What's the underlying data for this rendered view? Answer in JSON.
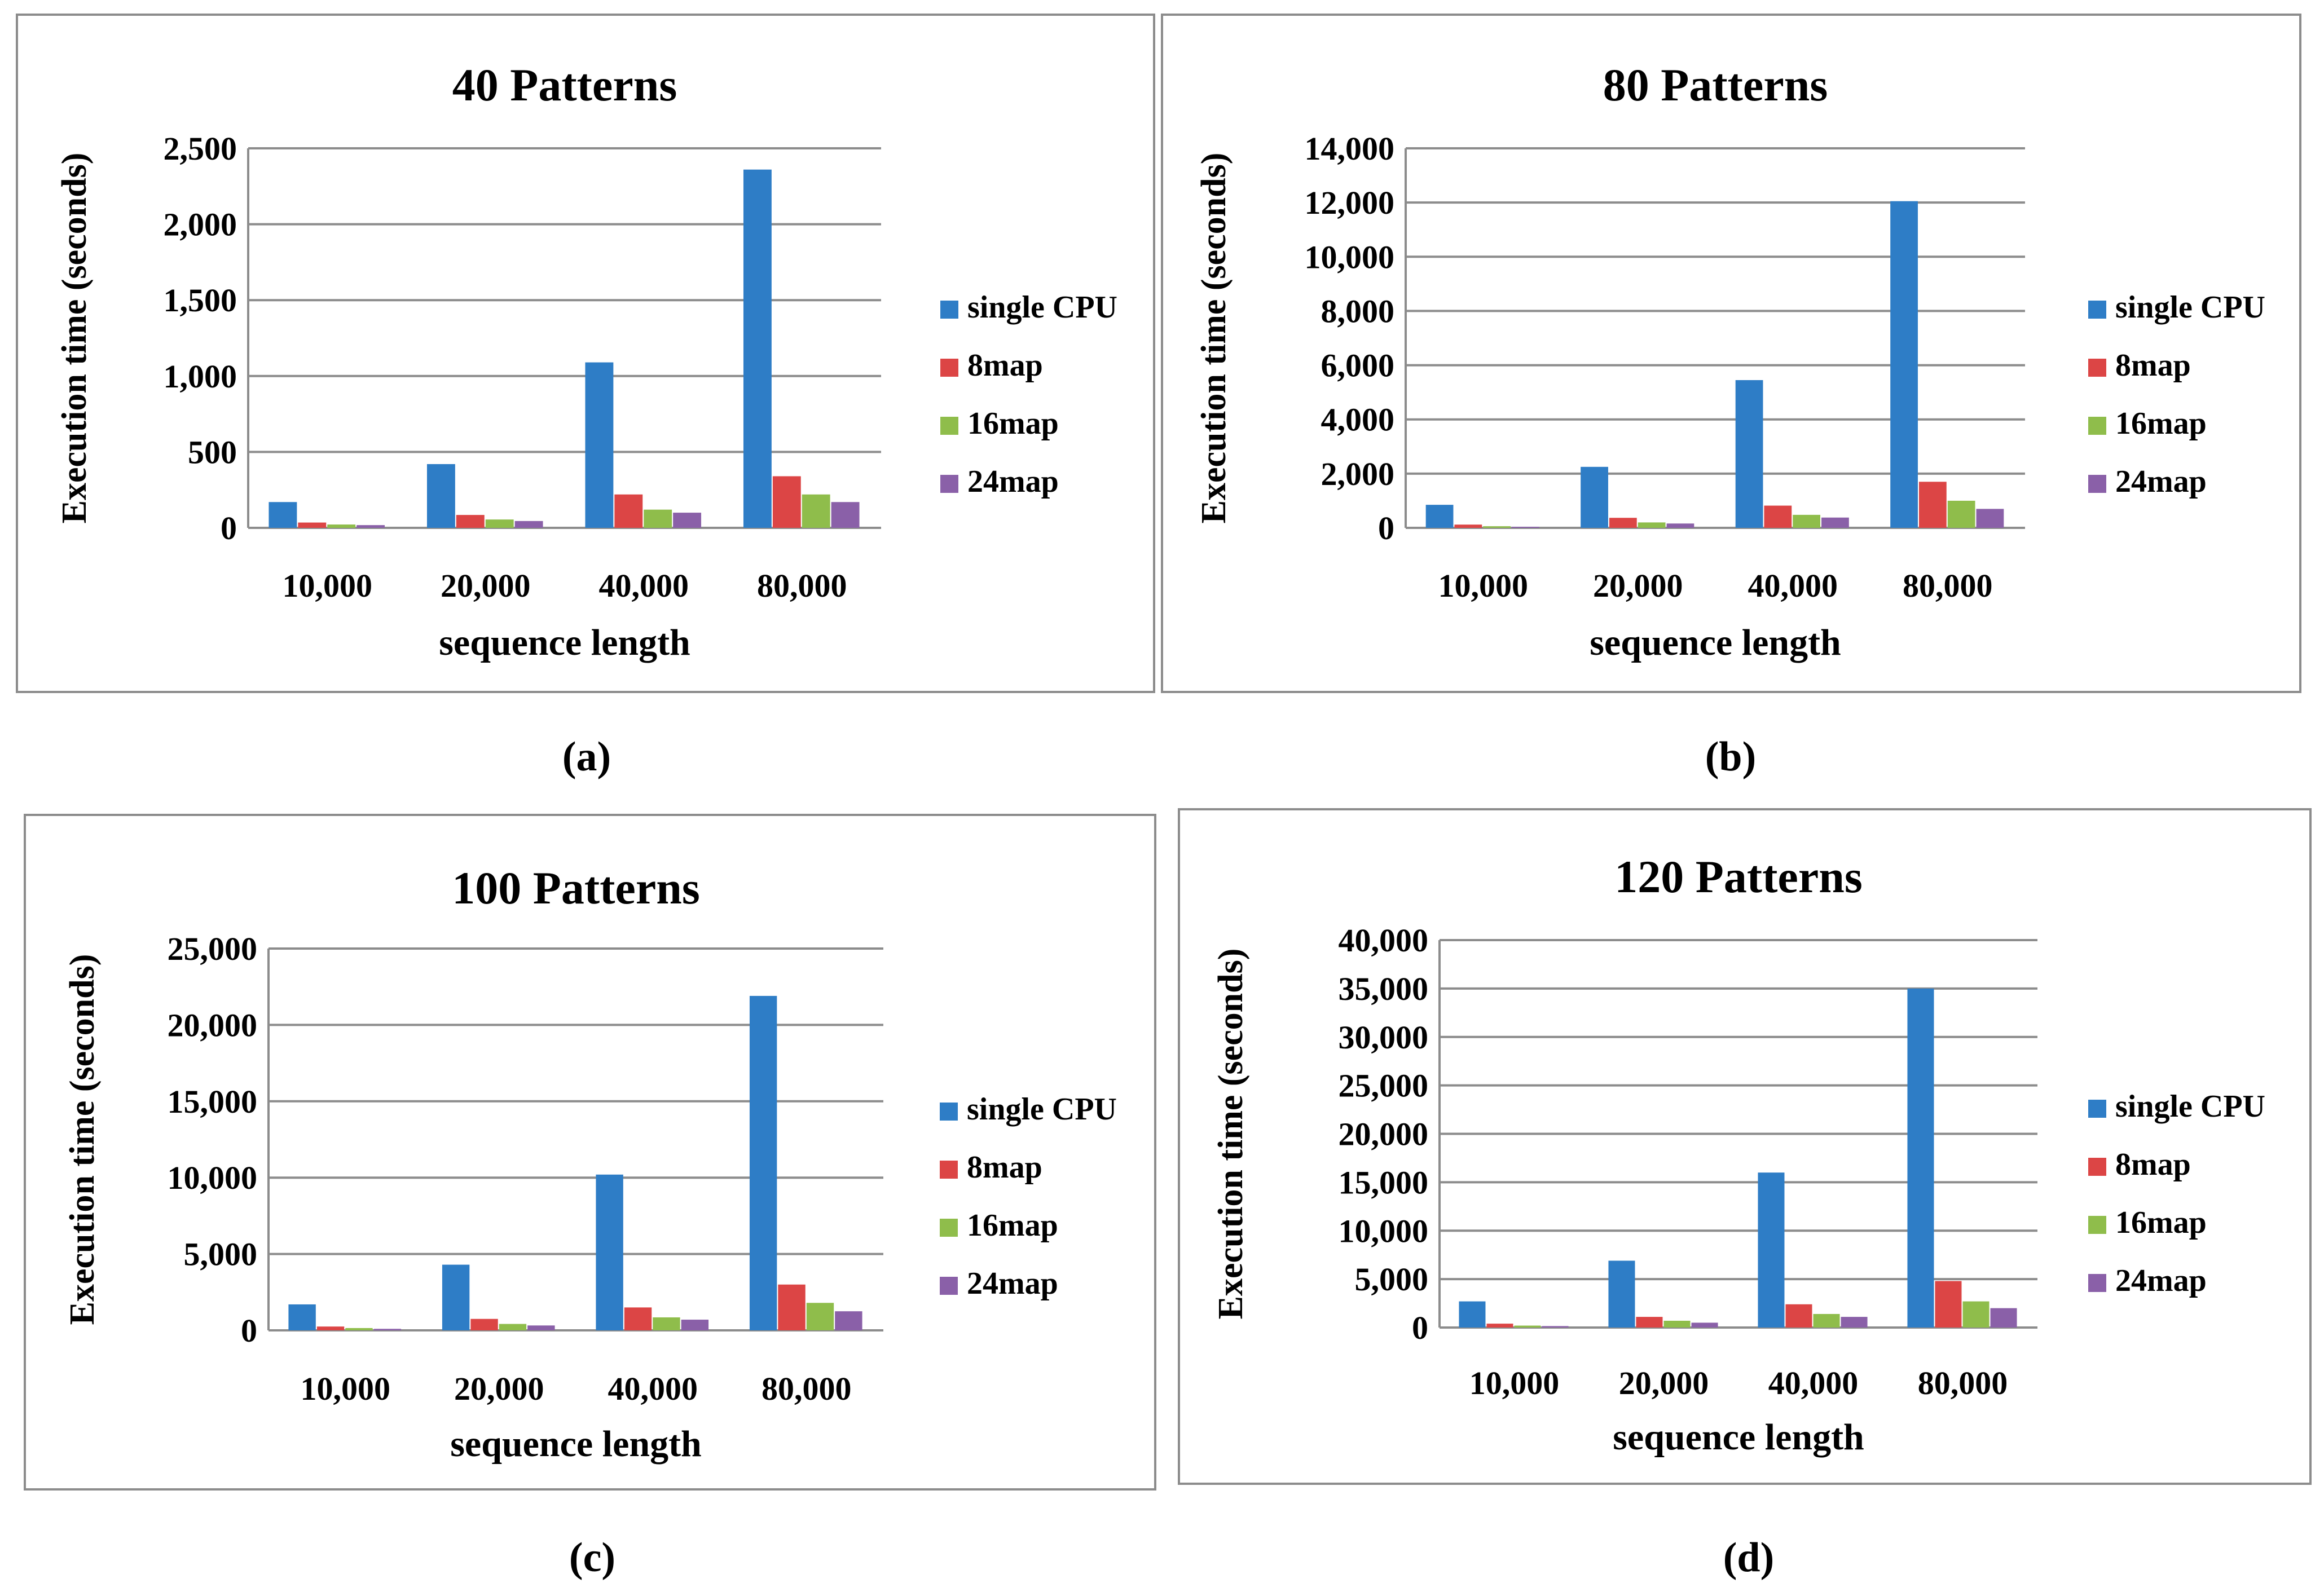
{
  "figure": {
    "captions": [
      "(a)",
      "(b)",
      "(c)",
      "(d)"
    ]
  },
  "legend": [
    "single CPU",
    "8map",
    "16map",
    "24map"
  ],
  "colors": [
    "#2e7dc6",
    "#dc4545",
    "#8fbd4b",
    "#8a60a8"
  ],
  "chart_data": [
    {
      "type": "bar",
      "title": "40 Patterns",
      "xlabel": "sequence length",
      "ylabel": "Execution time (seconds)",
      "categories": [
        "10,000",
        "20,000",
        "40,000",
        "80,000"
      ],
      "ylim": [
        0,
        2500
      ],
      "yticks": [
        0,
        500,
        1000,
        1500,
        2000,
        2500
      ],
      "ytick_labels": [
        "0",
        "500",
        "1,000",
        "1,500",
        "2,000",
        "2,500"
      ],
      "grid": true,
      "legend_position": "right",
      "series": [
        {
          "name": "single CPU",
          "values": [
            170,
            420,
            1090,
            2360
          ]
        },
        {
          "name": "8map",
          "values": [
            35,
            85,
            220,
            340
          ]
        },
        {
          "name": "16map",
          "values": [
            22,
            55,
            120,
            220
          ]
        },
        {
          "name": "24map",
          "values": [
            18,
            45,
            100,
            170
          ]
        }
      ]
    },
    {
      "type": "bar",
      "title": "80 Patterns",
      "xlabel": "sequence length",
      "ylabel": "Execution time (seconds)",
      "categories": [
        "10,000",
        "20,000",
        "40,000",
        "80,000"
      ],
      "ylim": [
        0,
        14000
      ],
      "yticks": [
        0,
        2000,
        4000,
        6000,
        8000,
        10000,
        12000,
        14000
      ],
      "ytick_labels": [
        "0",
        "2,000",
        "4,000",
        "6,000",
        "8,000",
        "10,000",
        "12,000",
        "14,000"
      ],
      "grid": true,
      "legend_position": "right",
      "series": [
        {
          "name": "single CPU",
          "values": [
            850,
            2250,
            5450,
            12050
          ]
        },
        {
          "name": "8map",
          "values": [
            120,
            370,
            820,
            1700
          ]
        },
        {
          "name": "16map",
          "values": [
            60,
            200,
            480,
            1000
          ]
        },
        {
          "name": "24map",
          "values": [
            40,
            160,
            380,
            700
          ]
        }
      ]
    },
    {
      "type": "bar",
      "title": "100 Patterns",
      "xlabel": "sequence length",
      "ylabel": "Execution time (seconds)",
      "categories": [
        "10,000",
        "20,000",
        "40,000",
        "80,000"
      ],
      "ylim": [
        0,
        25000
      ],
      "yticks": [
        0,
        5000,
        10000,
        15000,
        20000,
        25000
      ],
      "ytick_labels": [
        "0",
        "5,000",
        "10,000",
        "15,000",
        "20,000",
        "25,000"
      ],
      "grid": true,
      "legend_position": "right",
      "series": [
        {
          "name": "single CPU",
          "values": [
            1700,
            4300,
            10200,
            21900
          ]
        },
        {
          "name": "8map",
          "values": [
            250,
            750,
            1500,
            3000
          ]
        },
        {
          "name": "16map",
          "values": [
            150,
            420,
            850,
            1800
          ]
        },
        {
          "name": "24map",
          "values": [
            100,
            320,
            700,
            1250
          ]
        }
      ]
    },
    {
      "type": "bar",
      "title": "120 Patterns",
      "xlabel": "sequence length",
      "ylabel": "Execution time (seconds)",
      "categories": [
        "10,000",
        "20,000",
        "40,000",
        "80,000"
      ],
      "ylim": [
        0,
        40000
      ],
      "yticks": [
        0,
        5000,
        10000,
        15000,
        20000,
        25000,
        30000,
        35000,
        40000
      ],
      "ytick_labels": [
        "0",
        "5,000",
        "10,000",
        "15,000",
        "20,000",
        "25,000",
        "30,000",
        "35,000",
        "40,000"
      ],
      "grid": true,
      "legend_position": "right",
      "series": [
        {
          "name": "single CPU",
          "values": [
            2700,
            6900,
            16000,
            35000
          ]
        },
        {
          "name": "8map",
          "values": [
            400,
            1100,
            2400,
            4800
          ]
        },
        {
          "name": "16map",
          "values": [
            200,
            700,
            1400,
            2700
          ]
        },
        {
          "name": "24map",
          "values": [
            150,
            500,
            1100,
            2000
          ]
        }
      ]
    }
  ]
}
